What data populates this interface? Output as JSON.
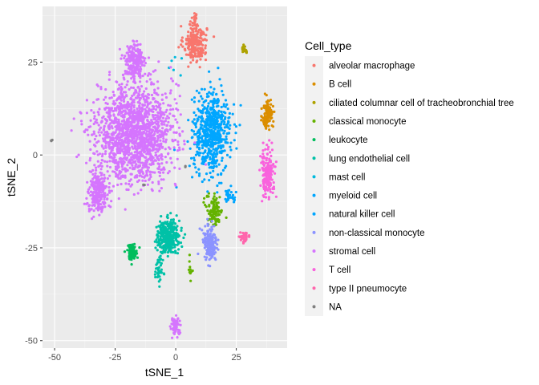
{
  "chart_data": {
    "type": "scatter",
    "xlabel": "tSNE_1",
    "ylabel": "tSNE_2",
    "xlim": [
      -55,
      46
    ],
    "ylim": [
      -52,
      40
    ],
    "x_ticks": [
      {
        "value": -50,
        "label": "-50"
      },
      {
        "value": -25,
        "label": "-25"
      },
      {
        "value": 0,
        "label": "0"
      },
      {
        "value": 25,
        "label": "25"
      }
    ],
    "y_ticks": [
      {
        "value": -50,
        "label": "-50"
      },
      {
        "value": -25,
        "label": "-25"
      },
      {
        "value": 0,
        "label": "0"
      },
      {
        "value": 25,
        "label": "25"
      }
    ],
    "grid": true,
    "legend": {
      "title": "Cell_type",
      "position": "right"
    },
    "series": [
      {
        "name": "alveolar macrophage",
        "color": "#F8766D",
        "clusters": [
          {
            "cx": 8,
            "cy": 30,
            "sx": 3.2,
            "sy": 3.2,
            "n": 220
          },
          {
            "cx": 8,
            "cy": 35,
            "sx": 1.2,
            "sy": 2.2,
            "n": 30
          }
        ]
      },
      {
        "name": "B cell",
        "color": "#DB8E00",
        "clusters": [
          {
            "cx": 38,
            "cy": 11,
            "sx": 1.4,
            "sy": 2.6,
            "n": 130
          }
        ]
      },
      {
        "name": "ciliated columnar cell of tracheobronchial tree",
        "color": "#AEA200",
        "clusters": [
          {
            "cx": 28.5,
            "cy": 28.5,
            "sx": 0.8,
            "sy": 0.8,
            "n": 25
          }
        ]
      },
      {
        "name": "classical monocyte",
        "color": "#64B200",
        "clusters": [
          {
            "cx": 16,
            "cy": -15,
            "sx": 2.2,
            "sy": 2.8,
            "n": 110
          },
          {
            "cx": 6,
            "cy": -31,
            "sx": 0.5,
            "sy": 1.8,
            "n": 12
          }
        ]
      },
      {
        "name": "leukocyte",
        "color": "#00BD5C",
        "clusters": [
          {
            "cx": -18,
            "cy": -26,
            "sx": 1.4,
            "sy": 1.4,
            "n": 90
          }
        ]
      },
      {
        "name": "lung endothelial cell",
        "color": "#00C1A7",
        "clusters": [
          {
            "cx": -3,
            "cy": -22,
            "sx": 3.2,
            "sy": 3.0,
            "n": 330
          },
          {
            "cx": -7,
            "cy": -31,
            "sx": 1.0,
            "sy": 2.2,
            "n": 40
          }
        ]
      },
      {
        "name": "mast cell",
        "color": "#00BADE",
        "clusters": [
          {
            "cx": -2,
            "cy": 24,
            "sx": 3.0,
            "sy": 1.5,
            "n": 6
          }
        ]
      },
      {
        "name": "myeloid cell",
        "color": "#00A6FF",
        "clusters": [
          {
            "cx": 22,
            "cy": -11,
            "sx": 1.5,
            "sy": 1.5,
            "n": 35
          }
        ]
      },
      {
        "name": "natural killer cell",
        "color": "#00A6FF",
        "clusters": [
          {
            "cx": 15,
            "cy": 6,
            "sx": 5.0,
            "sy": 7.0,
            "n": 620
          }
        ]
      },
      {
        "name": "non-classical monocyte",
        "color": "#8B93FF",
        "clusters": [
          {
            "cx": 14,
            "cy": -24,
            "sx": 2.0,
            "sy": 3.5,
            "n": 170
          }
        ]
      },
      {
        "name": "stromal cell",
        "color": "#D575FE",
        "clusters": [
          {
            "cx": -17,
            "cy": 25,
            "sx": 3.0,
            "sy": 3.5,
            "n": 200
          },
          {
            "cx": -17,
            "cy": 6,
            "sx": 10.5,
            "sy": 8.5,
            "n": 1600
          },
          {
            "cx": -32,
            "cy": -10,
            "sx": 2.8,
            "sy": 3.5,
            "n": 220
          },
          {
            "cx": 0,
            "cy": -46,
            "sx": 1.3,
            "sy": 1.6,
            "n": 60
          }
        ]
      },
      {
        "name": "T cell",
        "color": "#F962DD",
        "clusters": [
          {
            "cx": 38,
            "cy": -5,
            "sx": 2.0,
            "sy": 4.0,
            "n": 180
          }
        ]
      },
      {
        "name": "type II pneumocyte",
        "color": "#FF65AC",
        "clusters": [
          {
            "cx": 28,
            "cy": -22,
            "sx": 1.2,
            "sy": 1.2,
            "n": 35
          }
        ]
      },
      {
        "name": "NA",
        "color": "#7F7F7F",
        "clusters": [
          {
            "cx": -51.5,
            "cy": 4,
            "sx": 0.3,
            "sy": 0.3,
            "n": 3
          },
          {
            "cx": 4,
            "cy": -3,
            "sx": 0.4,
            "sy": 0.4,
            "n": 2
          },
          {
            "cx": -13,
            "cy": -8,
            "sx": 0.3,
            "sy": 0.3,
            "n": 2
          }
        ]
      }
    ]
  }
}
